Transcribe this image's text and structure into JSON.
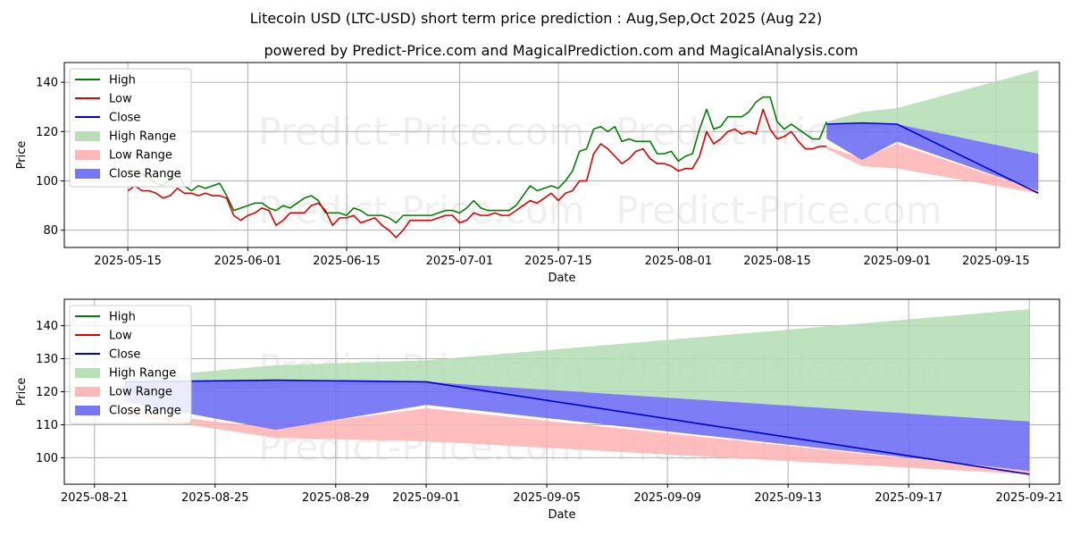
{
  "titles": {
    "main": "Litecoin USD (LTC-USD) short term price prediction : Aug,Sep,Oct 2025 (Aug 22)",
    "sub": "powered by Predict-Price.com and MagicalPrediction.com and MagicalAnalysis.com"
  },
  "watermark": "Predict-Price.com",
  "colors": {
    "high": "#008000",
    "low": "#e00000",
    "close": "#0000cc",
    "high_range": "#b3dcb3",
    "low_range": "#ffb3b3",
    "close_range": "#6f6ff5",
    "grid": "#b0b0b0"
  },
  "chart_data": [
    {
      "type": "line",
      "panel": "top",
      "xlabel": "Date",
      "ylabel": "Price",
      "xlim": [
        "2025-05-06",
        "2025-09-24"
      ],
      "ylim": [
        73,
        148
      ],
      "grid": true,
      "legend_position": "upper-left",
      "x_ticks": [
        "2025-05-15",
        "2025-06-01",
        "2025-06-15",
        "2025-07-01",
        "2025-07-15",
        "2025-08-01",
        "2025-08-15",
        "2025-09-01",
        "2025-09-15"
      ],
      "y_ticks": [
        80,
        100,
        120,
        140
      ],
      "legend": [
        "High",
        "Low",
        "Close",
        "High Range",
        "Low Range",
        "Close Range"
      ],
      "x": [
        "2025-05-15",
        "2025-05-16",
        "2025-05-17",
        "2025-05-18",
        "2025-05-19",
        "2025-05-20",
        "2025-05-21",
        "2025-05-22",
        "2025-05-23",
        "2025-05-24",
        "2025-05-25",
        "2025-05-26",
        "2025-05-27",
        "2025-05-28",
        "2025-05-29",
        "2025-05-30",
        "2025-05-31",
        "2025-06-01",
        "2025-06-02",
        "2025-06-03",
        "2025-06-04",
        "2025-06-05",
        "2025-06-06",
        "2025-06-07",
        "2025-06-08",
        "2025-06-09",
        "2025-06-10",
        "2025-06-11",
        "2025-06-12",
        "2025-06-13",
        "2025-06-14",
        "2025-06-15",
        "2025-06-16",
        "2025-06-17",
        "2025-06-18",
        "2025-06-19",
        "2025-06-20",
        "2025-06-21",
        "2025-06-22",
        "2025-06-23",
        "2025-06-24",
        "2025-06-25",
        "2025-06-26",
        "2025-06-27",
        "2025-06-28",
        "2025-06-29",
        "2025-06-30",
        "2025-07-01",
        "2025-07-02",
        "2025-07-03",
        "2025-07-04",
        "2025-07-05",
        "2025-07-06",
        "2025-07-07",
        "2025-07-08",
        "2025-07-09",
        "2025-07-10",
        "2025-07-11",
        "2025-07-12",
        "2025-07-13",
        "2025-07-14",
        "2025-07-15",
        "2025-07-16",
        "2025-07-17",
        "2025-07-18",
        "2025-07-19",
        "2025-07-20",
        "2025-07-21",
        "2025-07-22",
        "2025-07-23",
        "2025-07-24",
        "2025-07-25",
        "2025-07-26",
        "2025-07-27",
        "2025-07-28",
        "2025-07-29",
        "2025-07-30",
        "2025-07-31",
        "2025-08-01",
        "2025-08-02",
        "2025-08-03",
        "2025-08-04",
        "2025-08-05",
        "2025-08-06",
        "2025-08-07",
        "2025-08-08",
        "2025-08-09",
        "2025-08-10",
        "2025-08-11",
        "2025-08-12",
        "2025-08-13",
        "2025-08-14",
        "2025-08-15",
        "2025-08-16",
        "2025-08-17",
        "2025-08-18",
        "2025-08-19",
        "2025-08-20",
        "2025-08-21",
        "2025-08-22"
      ],
      "series": [
        {
          "name": "High",
          "values": [
            103,
            104,
            103,
            101,
            99,
            98,
            101,
            104,
            98,
            96,
            98,
            97,
            98,
            99,
            94,
            88,
            89,
            90,
            91,
            91,
            89,
            88,
            90,
            89,
            91,
            93,
            94,
            92,
            87,
            87,
            87,
            86,
            89,
            88,
            86,
            86,
            86,
            85,
            83,
            86,
            86,
            86,
            86,
            86,
            87,
            88,
            88,
            87,
            89,
            92,
            89,
            88,
            88,
            88,
            88,
            90,
            94,
            98,
            96,
            97,
            98,
            97,
            100,
            104,
            112,
            113,
            121,
            122,
            120,
            122,
            116,
            117,
            116,
            116,
            116,
            111,
            111,
            112,
            108,
            110,
            111,
            121,
            129,
            121,
            122,
            126,
            126,
            126,
            128,
            132,
            134,
            134,
            124,
            121,
            123,
            121,
            119,
            117,
            117,
            124
          ]
        },
        {
          "name": "Low",
          "values": [
            96,
            98,
            96,
            96,
            95,
            93,
            94,
            97,
            95,
            95,
            94,
            95,
            94,
            94,
            93,
            86,
            84,
            86,
            87,
            89,
            88,
            82,
            84,
            87,
            87,
            87,
            90,
            91,
            88,
            82,
            85,
            85,
            86,
            83,
            84,
            85,
            82,
            80,
            77,
            80,
            84,
            84,
            84,
            84,
            85,
            86,
            86,
            83,
            84,
            87,
            86,
            86,
            87,
            86,
            86,
            88,
            90,
            92,
            91,
            93,
            95,
            92,
            95,
            96,
            100,
            100,
            111,
            115,
            113,
            110,
            107,
            109,
            112,
            113,
            109,
            107,
            107,
            106,
            104,
            105,
            105,
            110,
            120,
            115,
            117,
            120,
            121,
            119,
            120,
            119,
            129,
            121,
            117,
            118,
            120,
            116,
            113,
            113,
            114,
            114
          ]
        },
        {
          "name": "Close",
          "x": [
            "2025-08-22",
            "2025-08-27",
            "2025-09-01",
            "2025-09-21"
          ],
          "values": [
            123,
            123.5,
            123,
            95
          ]
        },
        {
          "name": "High Range",
          "x": [
            "2025-08-22",
            "2025-08-27",
            "2025-09-01",
            "2025-09-21"
          ],
          "upper": [
            124,
            128,
            129.5,
            145
          ],
          "lower": [
            120,
            121,
            123,
            111
          ]
        },
        {
          "name": "Low Range",
          "x": [
            "2025-08-22",
            "2025-08-27",
            "2025-09-01",
            "2025-09-21"
          ],
          "upper": [
            114,
            109,
            115,
            96
          ],
          "lower": [
            113,
            106,
            105,
            95
          ]
        },
        {
          "name": "Close Range",
          "x": [
            "2025-08-22",
            "2025-08-27",
            "2025-09-01",
            "2025-09-21"
          ],
          "upper": [
            123,
            123.5,
            123,
            111
          ],
          "lower": [
            117,
            108.5,
            116,
            96
          ]
        }
      ]
    },
    {
      "type": "line",
      "panel": "bottom",
      "xlabel": "Date",
      "ylabel": "Price",
      "xlim": [
        "2025-08-20",
        "2025-09-22"
      ],
      "ylim": [
        92,
        148
      ],
      "grid": true,
      "legend_position": "upper-left",
      "x_ticks": [
        "2025-08-21",
        "2025-08-25",
        "2025-08-29",
        "2025-09-01",
        "2025-09-05",
        "2025-09-09",
        "2025-09-13",
        "2025-09-17",
        "2025-09-21"
      ],
      "y_ticks": [
        100,
        110,
        120,
        130,
        140
      ],
      "legend": [
        "High",
        "Low",
        "Close",
        "High Range",
        "Low Range",
        "Close Range"
      ],
      "series": [
        {
          "name": "High",
          "x": [],
          "values": []
        },
        {
          "name": "Low",
          "x": [],
          "values": []
        },
        {
          "name": "Close",
          "x": [
            "2025-08-22",
            "2025-08-27",
            "2025-09-01",
            "2025-09-21"
          ],
          "values": [
            123,
            123.5,
            123,
            95
          ]
        },
        {
          "name": "High Range",
          "x": [
            "2025-08-22",
            "2025-08-27",
            "2025-09-01",
            "2025-09-21"
          ],
          "upper": [
            124,
            128,
            129.5,
            145
          ],
          "lower": [
            120,
            121,
            123,
            111
          ]
        },
        {
          "name": "Low Range",
          "x": [
            "2025-08-22",
            "2025-08-27",
            "2025-09-01",
            "2025-09-21"
          ],
          "upper": [
            114,
            109,
            115,
            96
          ],
          "lower": [
            113,
            106,
            105,
            95
          ]
        },
        {
          "name": "Close Range",
          "x": [
            "2025-08-22",
            "2025-08-27",
            "2025-09-01",
            "2025-09-21"
          ],
          "upper": [
            123,
            123.5,
            123,
            111
          ],
          "lower": [
            117,
            108.5,
            116,
            96
          ]
        }
      ]
    }
  ]
}
